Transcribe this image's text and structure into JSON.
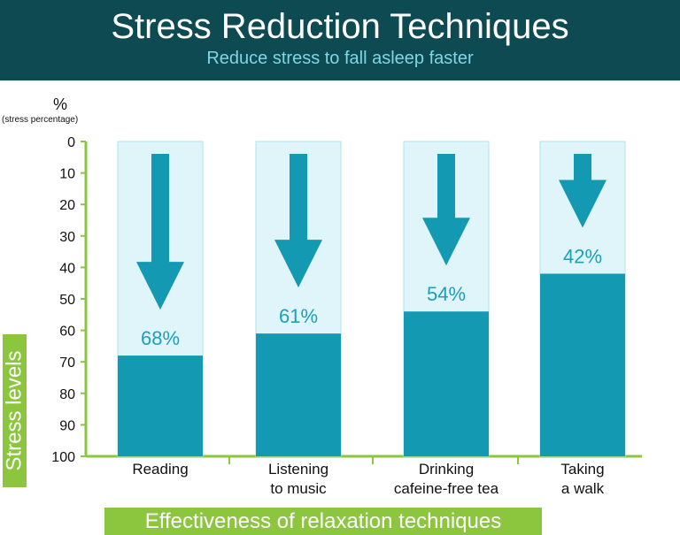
{
  "header": {
    "title": "Stress Reduction Techniques",
    "subtitle": "Reduce stress to fall asleep faster"
  },
  "axis": {
    "unit": "%",
    "unit_note": "(stress percentage)",
    "ylabel": "Stress levels",
    "xlabel": "Effectiveness of relaxation techniques"
  },
  "colors": {
    "header_bg": "#0d4a52",
    "subtitle": "#7fd6e6",
    "bar_track": "#dff5fa",
    "bar_track_border": "#aee3ee",
    "bar_fill": "#1499b3",
    "arrow": "#1499b3",
    "value_label": "#1c9fb8",
    "axis": "#8cc63f",
    "label_box": "#8cc63f"
  },
  "chart_data": {
    "type": "bar",
    "orientation": "vertical",
    "y_inverted": true,
    "ylim": [
      0,
      100
    ],
    "yticks": [
      "0",
      "10",
      "20",
      "30",
      "40",
      "50",
      "60",
      "70",
      "80",
      "90",
      "100"
    ],
    "categories": [
      [
        "Reading"
      ],
      [
        "Listening",
        "to music"
      ],
      [
        "Drinking",
        "cafeine-free tea"
      ],
      [
        "Taking",
        "a walk"
      ]
    ],
    "values": [
      68,
      61,
      54,
      42
    ],
    "value_labels": [
      "68%",
      "61%",
      "54%",
      "42%"
    ],
    "xlabel": "Effectiveness of relaxation techniques",
    "ylabel": "Stress levels",
    "grid": false,
    "legend": "none"
  }
}
